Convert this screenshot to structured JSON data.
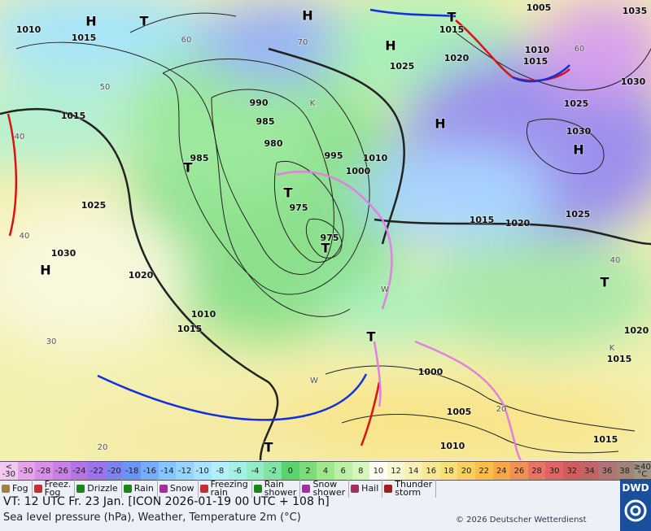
{
  "map": {
    "pressure_labels": [
      "1010",
      "1015",
      "1015",
      "1025",
      "1030",
      "1020",
      "1010",
      "1015",
      "990",
      "985",
      "980",
      "985",
      "975",
      "975",
      "995",
      "1000",
      "1010",
      "1025",
      "1020",
      "1015",
      "1010",
      "1015",
      "1005",
      "1035",
      "1030",
      "1025",
      "1030",
      "1015",
      "1020",
      "1025",
      "1020",
      "1015",
      "1000",
      "1005",
      "1010",
      "1015"
    ],
    "temperature_labels": [
      "60",
      "50",
      "40",
      "40",
      "30",
      "20",
      "70",
      "60",
      "40",
      "20"
    ],
    "centers": [
      "H",
      "H",
      "H",
      "H",
      "H",
      "H",
      "T",
      "T",
      "T",
      "T",
      "T",
      "T",
      "T",
      "T"
    ],
    "other_labels": [
      "K",
      "W",
      "W",
      "K"
    ]
  },
  "temperature_scale": [
    {
      "label": "<\n-30",
      "color": "#f0c8f0"
    },
    {
      "label": "-30",
      "color": "#e4a4e8"
    },
    {
      "label": "-28",
      "color": "#d890e4"
    },
    {
      "label": "-26",
      "color": "#c880e4"
    },
    {
      "label": "-24",
      "color": "#b474e4"
    },
    {
      "label": "-22",
      "color": "#9c74e8"
    },
    {
      "label": "-20",
      "color": "#7c84ec"
    },
    {
      "label": "-18",
      "color": "#6c94f4"
    },
    {
      "label": "-16",
      "color": "#78acfc"
    },
    {
      "label": "-14",
      "color": "#88c4ff"
    },
    {
      "label": "-12",
      "color": "#98d4ff"
    },
    {
      "label": "-10",
      "color": "#a8e4ff"
    },
    {
      "label": "-8",
      "color": "#b4f0fc"
    },
    {
      "label": "-6",
      "color": "#a4f0e4"
    },
    {
      "label": "-4",
      "color": "#94ecc4"
    },
    {
      "label": "-2",
      "color": "#80e4a4"
    },
    {
      "label": "0",
      "color": "#58d46c"
    },
    {
      "label": "2",
      "color": "#7cdc7c"
    },
    {
      "label": "4",
      "color": "#a0e68c"
    },
    {
      "label": "6",
      "color": "#bcf0a4"
    },
    {
      "label": "8",
      "color": "#d4f8bc"
    },
    {
      "label": "10",
      "color": "#fffff4"
    },
    {
      "label": "12",
      "color": "#f8f8d4"
    },
    {
      "label": "14",
      "color": "#f8f0b4"
    },
    {
      "label": "16",
      "color": "#f8e894"
    },
    {
      "label": "18",
      "color": "#f8e074"
    },
    {
      "label": "20",
      "color": "#f8d060"
    },
    {
      "label": "22",
      "color": "#f8c044"
    },
    {
      "label": "24",
      "color": "#f8a844"
    },
    {
      "label": "26",
      "color": "#f09054"
    },
    {
      "label": "28",
      "color": "#e87464"
    },
    {
      "label": "30",
      "color": "#e06464"
    },
    {
      "label": "32",
      "color": "#d05c5c"
    },
    {
      "label": "34",
      "color": "#c06464"
    },
    {
      "label": "36",
      "color": "#b07474"
    },
    {
      "label": "38",
      "color": "#a08474"
    },
    {
      "label": "≥40\n°C",
      "color": "#a09484"
    }
  ],
  "weather_legend": [
    "Fog",
    "Freez.\nFog",
    "Drizzle",
    "Rain",
    "Snow",
    "Freezing\nrain",
    "Rain\nshower",
    "Snow\nshower",
    "Hail",
    "Thunder\nstorm"
  ],
  "footer": {
    "valid_time": "VT: 12 UTC Fr.  23 Jan. [ICON 2026-01-19  00 UTC + 108 h]",
    "description": "Sea level pressure (hPa), Weather, Temperature 2m (°C)",
    "copyright": "© 2026 Deutscher Wetterdienst",
    "logo": "DWD"
  }
}
